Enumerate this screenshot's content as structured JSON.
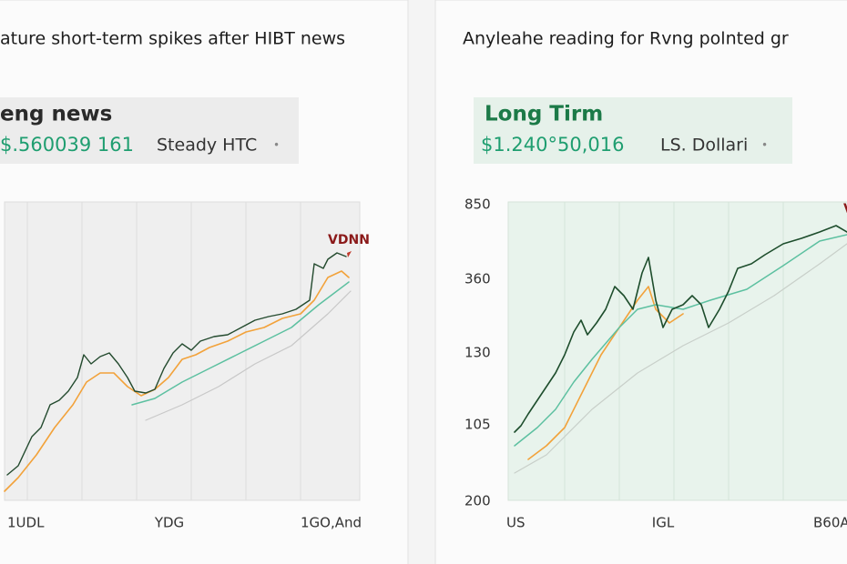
{
  "panels": [
    {
      "title": "ature short-term spikes after HIBT news",
      "header": {
        "label": "eng news",
        "price": "$.560039 161",
        "note": "Steady HTC",
        "dot": "•"
      },
      "annotation": "VDNN",
      "x_labels": [
        "1UDL",
        "YDG",
        "1GO,And"
      ]
    },
    {
      "title": "Anyleahe reading for Rvng polnted gr",
      "header": {
        "label": "Long Tirm",
        "price": "$1.240°50,016",
        "note": "LS. Dollari",
        "dot": "•"
      },
      "annotation": "V",
      "y_labels": [
        "850",
        "360",
        "130",
        "105",
        "200"
      ],
      "x_labels": [
        "US",
        "IGL",
        "B60A"
      ]
    }
  ]
}
